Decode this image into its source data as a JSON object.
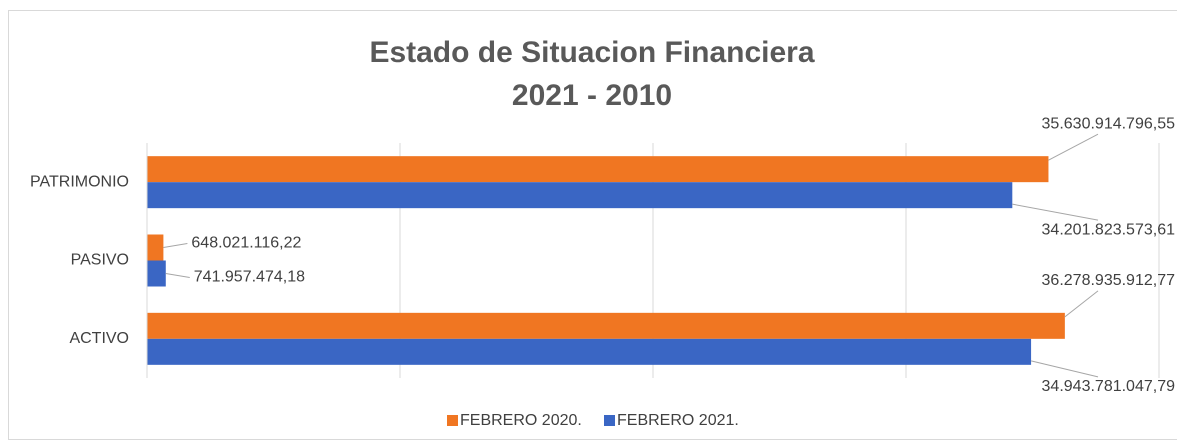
{
  "chart_data": {
    "type": "barh",
    "title": "Estado de Situacion Financiera",
    "subtitle": "2021 - 2010",
    "categories": [
      "PATRIMONIO",
      "PASIVO",
      "ACTIVO"
    ],
    "series": [
      {
        "name": "FEBRERO 2020.",
        "color": "#f07622",
        "values": [
          35630914796.55,
          648021116.22,
          36278935912.77
        ],
        "value_labels": [
          "35.630.914.796,55",
          "648.021.116,22",
          "36.278.935.912,77"
        ]
      },
      {
        "name": "FEBRERO 2021.",
        "color": "#3a66c4",
        "values": [
          34201823573.61,
          741957474.18,
          34943781047.79
        ],
        "value_labels": [
          "34.201.823.573,61",
          "741.957.474,18",
          "34.943.781.047,79"
        ]
      }
    ],
    "xlim": [
      0,
      40000000000
    ],
    "xticks": [
      0,
      10000000000,
      20000000000,
      30000000000,
      40000000000
    ],
    "grid": true,
    "legend": "bottom"
  }
}
